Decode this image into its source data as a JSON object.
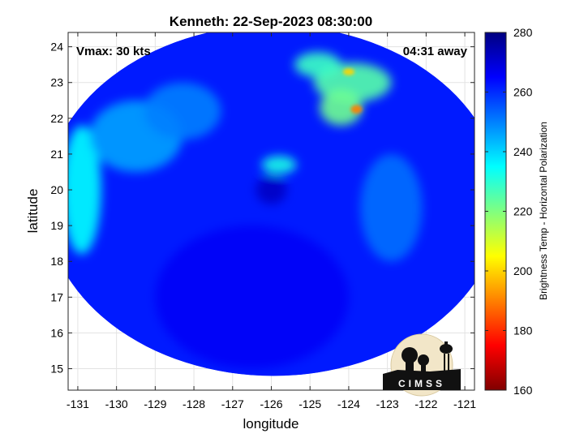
{
  "chart_data": {
    "type": "heatmap",
    "title": "Kenneth: 22-Sep-2023 08:30:00",
    "corner_left": "Vmax: 30 kts",
    "corner_right": "04:31 away",
    "xlabel": "longitude",
    "ylabel": "latitude",
    "xlim": [
      -131.25,
      -120.75
    ],
    "ylim": [
      14.4,
      24.4
    ],
    "xticks": [
      -131,
      -130,
      -129,
      -128,
      -127,
      -126,
      -125,
      -124,
      -123,
      -122,
      -121
    ],
    "yticks": [
      15,
      16,
      17,
      18,
      19,
      20,
      21,
      22,
      23,
      24
    ],
    "grid": true,
    "footprint_center": [
      -125.95,
      19.7
    ],
    "footprint_radius_deg": [
      5.9,
      4.9
    ],
    "storm_center": [
      -125.8,
      19.9
    ],
    "colorbar": {
      "label": "Brightness Temp - Horizontal Polarization",
      "min": 160,
      "max": 280,
      "ticks": [
        160,
        180,
        200,
        220,
        240,
        260,
        280
      ],
      "colormap": "jet",
      "colors": [
        "#800000",
        "#ff0000",
        "#ff8000",
        "#ffff00",
        "#80ff80",
        "#00ffff",
        "#0080ff",
        "#0000ff",
        "#000080"
      ]
    },
    "background_value": 262,
    "features": [
      {
        "lon": -130.9,
        "lat": 20.0,
        "value": 235,
        "rx": 0.5,
        "ry": 1.8
      },
      {
        "lon": -129.5,
        "lat": 21.5,
        "value": 246,
        "rx": 1.2,
        "ry": 1.0
      },
      {
        "lon": -128.3,
        "lat": 22.2,
        "value": 250,
        "rx": 1.0,
        "ry": 0.8
      },
      {
        "lon": -123.9,
        "lat": 23.0,
        "value": 225,
        "rx": 1.0,
        "ry": 0.55
      },
      {
        "lon": -124.2,
        "lat": 22.3,
        "value": 222,
        "rx": 0.55,
        "ry": 0.5
      },
      {
        "lon": -124.8,
        "lat": 23.5,
        "value": 228,
        "rx": 0.6,
        "ry": 0.35
      },
      {
        "lon": -125.8,
        "lat": 20.7,
        "value": 232,
        "rx": 0.45,
        "ry": 0.25
      },
      {
        "lon": -123.8,
        "lat": 22.25,
        "value": 190,
        "rx": 0.15,
        "ry": 0.12
      },
      {
        "lon": -124.0,
        "lat": 23.3,
        "value": 200,
        "rx": 0.15,
        "ry": 0.1
      },
      {
        "lon": -122.9,
        "lat": 19.5,
        "value": 252,
        "rx": 0.8,
        "ry": 1.5
      },
      {
        "lon": -126.5,
        "lat": 17.0,
        "value": 266,
        "rx": 2.5,
        "ry": 2.0
      },
      {
        "lon": -126.0,
        "lat": 20.0,
        "value": 272,
        "rx": 0.4,
        "ry": 0.4
      }
    ],
    "logo_text": "CIMSS"
  }
}
